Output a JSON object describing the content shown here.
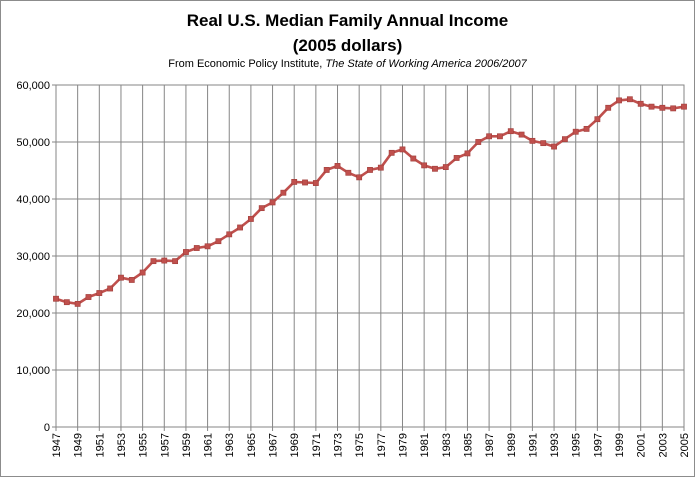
{
  "chart_data": {
    "type": "line",
    "title": "Real U.S. Median Family Annual Income",
    "title_line2": "(2005 dollars)",
    "subtitle_prefix": "From Economic Policy Institute, ",
    "subtitle_italic": "The State of Working America 2006/2007",
    "xlabel": "",
    "ylabel": "",
    "ylim": [
      0,
      60000
    ],
    "y_ticks": [
      "0",
      "10,000",
      "20,000",
      "30,000",
      "40,000",
      "50,000",
      "60,000"
    ],
    "x_tick_labels": [
      "1947",
      "1949",
      "1951",
      "1953",
      "1955",
      "1957",
      "1959",
      "1961",
      "1963",
      "1965",
      "1967",
      "1969",
      "1971",
      "1973",
      "1975",
      "1977",
      "1979",
      "1981",
      "1983",
      "1985",
      "1987",
      "1989",
      "1991",
      "1993",
      "1995",
      "1997",
      "1999",
      "2001",
      "2003",
      "2005"
    ],
    "grid": true,
    "legend": "none",
    "series": [
      {
        "color": "#c0504d",
        "x": [
          1947,
          1948,
          1949,
          1950,
          1951,
          1952,
          1953,
          1954,
          1955,
          1956,
          1957,
          1958,
          1959,
          1960,
          1961,
          1962,
          1963,
          1964,
          1965,
          1966,
          1967,
          1968,
          1969,
          1970,
          1971,
          1972,
          1973,
          1974,
          1975,
          1976,
          1977,
          1978,
          1979,
          1980,
          1981,
          1982,
          1983,
          1984,
          1985,
          1986,
          1987,
          1988,
          1989,
          1990,
          1991,
          1992,
          1993,
          1994,
          1995,
          1996,
          1997,
          1998,
          1999,
          2000,
          2001,
          2002,
          2003,
          2004,
          2005
        ],
        "values": [
          22500,
          21900,
          21600,
          22800,
          23500,
          24300,
          26200,
          25800,
          27100,
          29100,
          29200,
          29100,
          30700,
          31400,
          31700,
          32600,
          33800,
          35000,
          36500,
          38400,
          39400,
          41100,
          43000,
          42900,
          42800,
          45100,
          45800,
          44600,
          43800,
          45100,
          45500,
          48100,
          48700,
          47100,
          45900,
          45300,
          45600,
          47200,
          48000,
          50000,
          51000,
          51000,
          51900,
          51300,
          50200,
          49800,
          49200,
          50500,
          51800,
          52300,
          54000,
          56000,
          57300,
          57500,
          56700,
          56200,
          56000,
          55900,
          56200
        ]
      }
    ]
  }
}
